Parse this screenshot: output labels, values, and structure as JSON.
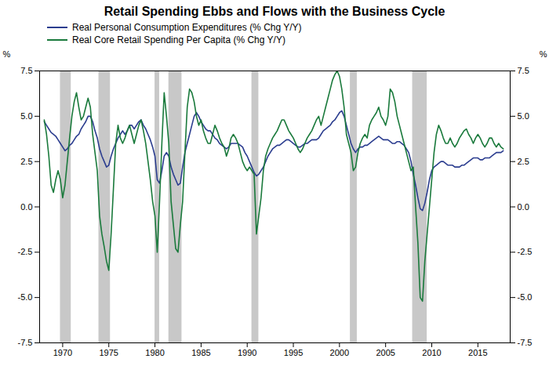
{
  "chart_data": {
    "type": "line",
    "title": "Retail Spending Ebbs and Flows with the Business Cycle",
    "ylabel": "%",
    "y2label": "%",
    "legend": "upper left",
    "grid": false,
    "xlim": [
      1967.5,
      2018.5
    ],
    "xticks": [
      1970,
      1975,
      1980,
      1985,
      1990,
      1995,
      2000,
      2005,
      2010,
      2015
    ],
    "ylim": [
      -7.5,
      7.5
    ],
    "yticks": [
      -7.5,
      {
        "value": -5.0,
        "label": "-5.0"
      },
      -2.5,
      {
        "value": 0.0,
        "label": "0.0"
      },
      2.5,
      {
        "value": 5.0,
        "label": "5.0"
      },
      7.5
    ],
    "y2lim": [
      -7.5,
      7.5
    ],
    "y2ticks": [
      -7.5,
      {
        "value": -5.0,
        "label": "-5.0"
      },
      -2.5,
      {
        "value": 0.0,
        "label": "0.0"
      },
      2.5,
      {
        "value": 5.0,
        "label": "5.0"
      },
      7.5
    ],
    "recession_bands": [
      [
        1969.75,
        1970.92
      ],
      [
        1973.92,
        1975.17
      ],
      [
        1980.0,
        1980.5
      ],
      [
        1981.5,
        1982.92
      ],
      [
        1990.5,
        1991.25
      ],
      [
        2001.17,
        2001.92
      ],
      [
        2007.92,
        2009.5
      ]
    ],
    "recession_color": "#C8C8C8",
    "x": [
      1968,
      1968.25,
      1968.5,
      1968.75,
      1969,
      1969.25,
      1969.5,
      1969.75,
      1970,
      1970.25,
      1970.5,
      1970.75,
      1971,
      1971.25,
      1971.5,
      1971.75,
      1972,
      1972.25,
      1972.5,
      1972.75,
      1973,
      1973.25,
      1973.5,
      1973.75,
      1974,
      1974.25,
      1974.5,
      1974.75,
      1975,
      1975.25,
      1975.5,
      1975.75,
      1976,
      1976.25,
      1976.5,
      1976.75,
      1977,
      1977.25,
      1977.5,
      1977.75,
      1978,
      1978.25,
      1978.5,
      1978.75,
      1979,
      1979.25,
      1979.5,
      1979.75,
      1980,
      1980.25,
      1980.5,
      1980.75,
      1981,
      1981.25,
      1981.5,
      1981.75,
      1982,
      1982.25,
      1982.5,
      1982.75,
      1983,
      1983.25,
      1983.5,
      1983.75,
      1984,
      1984.25,
      1984.5,
      1984.75,
      1985,
      1985.25,
      1985.5,
      1985.75,
      1986,
      1986.25,
      1986.5,
      1986.75,
      1987,
      1987.25,
      1987.5,
      1987.75,
      1988,
      1988.25,
      1988.5,
      1988.75,
      1989,
      1989.25,
      1989.5,
      1989.75,
      1990,
      1990.25,
      1990.5,
      1990.75,
      1991,
      1991.25,
      1991.5,
      1991.75,
      1992,
      1992.25,
      1992.5,
      1992.75,
      1993,
      1993.25,
      1993.5,
      1993.75,
      1994,
      1994.25,
      1994.5,
      1994.75,
      1995,
      1995.25,
      1995.5,
      1995.75,
      1996,
      1996.25,
      1996.5,
      1996.75,
      1997,
      1997.25,
      1997.5,
      1997.75,
      1998,
      1998.25,
      1998.5,
      1998.75,
      1999,
      1999.25,
      1999.5,
      1999.75,
      2000,
      2000.25,
      2000.5,
      2000.75,
      2001,
      2001.25,
      2001.5,
      2001.75,
      2002,
      2002.25,
      2002.5,
      2002.75,
      2003,
      2003.25,
      2003.5,
      2003.75,
      2004,
      2004.25,
      2004.5,
      2004.75,
      2005,
      2005.25,
      2005.5,
      2005.75,
      2006,
      2006.25,
      2006.5,
      2006.75,
      2007,
      2007.25,
      2007.5,
      2007.75,
      2008,
      2008.25,
      2008.5,
      2008.75,
      2009,
      2009.25,
      2009.5,
      2009.75,
      2010,
      2010.25,
      2010.5,
      2010.75,
      2011,
      2011.25,
      2011.5,
      2011.75,
      2012,
      2012.25,
      2012.5,
      2012.75,
      2013,
      2013.25,
      2013.5,
      2013.75,
      2014,
      2014.25,
      2014.5,
      2014.75,
      2015,
      2015.25,
      2015.5,
      2015.75,
      2016,
      2016.25,
      2016.5,
      2016.75,
      2017,
      2017.25,
      2017.5,
      2017.75
    ],
    "series": [
      {
        "name": "Real Personal Consumption Expenditures (% Chg Y/Y)",
        "color": "#2B3D8F",
        "values": [
          4.7,
          4.5,
          4.3,
          4.1,
          4.0,
          3.9,
          3.7,
          3.5,
          3.3,
          3.1,
          3.2,
          3.4,
          3.5,
          3.7,
          3.9,
          4.0,
          4.3,
          4.5,
          4.7,
          5.0,
          5.0,
          4.7,
          4.2,
          3.8,
          3.2,
          2.8,
          2.5,
          2.2,
          2.3,
          2.8,
          3.2,
          3.5,
          3.8,
          4.0,
          4.2,
          4.0,
          4.2,
          4.5,
          4.5,
          4.3,
          4.5,
          4.7,
          4.8,
          4.5,
          4.3,
          4.0,
          3.7,
          3.3,
          2.8,
          1.5,
          1.3,
          2.0,
          2.8,
          3.0,
          2.8,
          2.2,
          1.8,
          1.5,
          1.2,
          1.3,
          2.2,
          3.0,
          3.5,
          4.0,
          4.5,
          5.0,
          5.2,
          5.0,
          4.7,
          4.5,
          4.3,
          4.2,
          4.2,
          4.0,
          3.8,
          3.7,
          3.5,
          3.4,
          3.3,
          3.2,
          3.3,
          3.5,
          3.5,
          3.5,
          3.5,
          3.4,
          3.3,
          3.0,
          2.8,
          2.5,
          2.2,
          1.9,
          1.7,
          1.8,
          2.0,
          2.2,
          2.5,
          2.8,
          3.0,
          3.2,
          3.3,
          3.4,
          3.4,
          3.5,
          3.6,
          3.7,
          3.7,
          3.6,
          3.5,
          3.4,
          3.3,
          3.3,
          3.4,
          3.5,
          3.5,
          3.6,
          3.7,
          3.7,
          3.7,
          3.8,
          4.0,
          4.2,
          4.3,
          4.4,
          4.5,
          4.7,
          4.8,
          5.0,
          5.2,
          5.3,
          5.0,
          4.5,
          4.0,
          3.5,
          3.2,
          3.0,
          3.2,
          3.3,
          3.3,
          3.4,
          3.4,
          3.5,
          3.6,
          3.7,
          3.8,
          3.9,
          3.8,
          3.7,
          3.7,
          3.7,
          3.6,
          3.5,
          3.5,
          3.6,
          3.6,
          3.5,
          3.4,
          3.2,
          3.0,
          2.5,
          1.8,
          1.2,
          0.5,
          -0.1,
          -0.2,
          0.2,
          0.8,
          1.5,
          2.0,
          2.2,
          2.3,
          2.4,
          2.5,
          2.5,
          2.4,
          2.3,
          2.3,
          2.3,
          2.2,
          2.2,
          2.2,
          2.3,
          2.3,
          2.4,
          2.5,
          2.6,
          2.7,
          2.7,
          2.7,
          2.6,
          2.6,
          2.7,
          2.7,
          2.7,
          2.8,
          2.9,
          3.0,
          3.0,
          3.0,
          3.1
        ]
      },
      {
        "name": "Real Core Retail Spending Per Capita (% Chg Y/Y)",
        "color": "#1A7A3C",
        "values": [
          4.8,
          4.0,
          2.8,
          1.2,
          0.8,
          1.5,
          2.0,
          1.5,
          0.5,
          1.2,
          2.5,
          3.8,
          5.0,
          5.8,
          6.3,
          5.5,
          4.8,
          5.0,
          5.5,
          6.0,
          5.5,
          4.0,
          3.0,
          2.0,
          -0.5,
          -1.5,
          -2.2,
          -3.0,
          -3.5,
          -1.5,
          1.0,
          3.5,
          4.5,
          3.8,
          3.5,
          3.8,
          4.2,
          4.5,
          4.0,
          3.5,
          4.0,
          4.5,
          4.8,
          4.2,
          3.5,
          2.5,
          1.5,
          0.3,
          -0.5,
          -2.5,
          0.3,
          3.5,
          6.3,
          5.0,
          3.5,
          0.3,
          -1.0,
          -2.3,
          -2.5,
          -1.0,
          0.3,
          3.0,
          5.5,
          6.5,
          6.3,
          5.8,
          5.0,
          4.5,
          4.8,
          4.2,
          3.8,
          3.5,
          3.5,
          4.0,
          4.5,
          4.2,
          3.8,
          3.5,
          3.3,
          2.8,
          3.2,
          3.8,
          4.0,
          3.8,
          3.5,
          3.0,
          2.5,
          2.2,
          2.0,
          2.2,
          2.0,
          1.8,
          -1.5,
          -0.5,
          0.5,
          2.0,
          2.8,
          3.2,
          3.5,
          3.8,
          4.0,
          4.2,
          4.5,
          4.8,
          4.8,
          4.5,
          4.2,
          4.0,
          3.8,
          3.5,
          3.2,
          3.0,
          3.2,
          3.5,
          3.8,
          4.0,
          4.2,
          4.5,
          4.8,
          5.0,
          4.5,
          5.0,
          5.5,
          6.0,
          6.5,
          7.0,
          7.3,
          7.5,
          7.2,
          6.5,
          5.5,
          4.0,
          3.5,
          3.0,
          2.0,
          2.2,
          3.0,
          3.5,
          3.8,
          4.0,
          3.8,
          4.5,
          4.8,
          5.0,
          5.2,
          5.5,
          5.0,
          4.8,
          4.5,
          5.0,
          6.5,
          6.3,
          5.8,
          5.0,
          4.5,
          4.0,
          3.5,
          3.0,
          2.5,
          2.0,
          2.2,
          0.0,
          -2.0,
          -5.0,
          -5.2,
          -3.0,
          -1.5,
          0.0,
          1.5,
          3.0,
          4.0,
          4.5,
          4.2,
          3.8,
          3.5,
          3.5,
          3.8,
          3.5,
          3.3,
          3.5,
          3.8,
          4.0,
          4.2,
          4.3,
          4.0,
          3.8,
          3.5,
          3.8,
          4.0,
          3.8,
          3.5,
          3.3,
          3.5,
          3.8,
          3.8,
          3.5,
          3.3,
          3.5,
          3.3,
          3.2
        ]
      }
    ]
  }
}
